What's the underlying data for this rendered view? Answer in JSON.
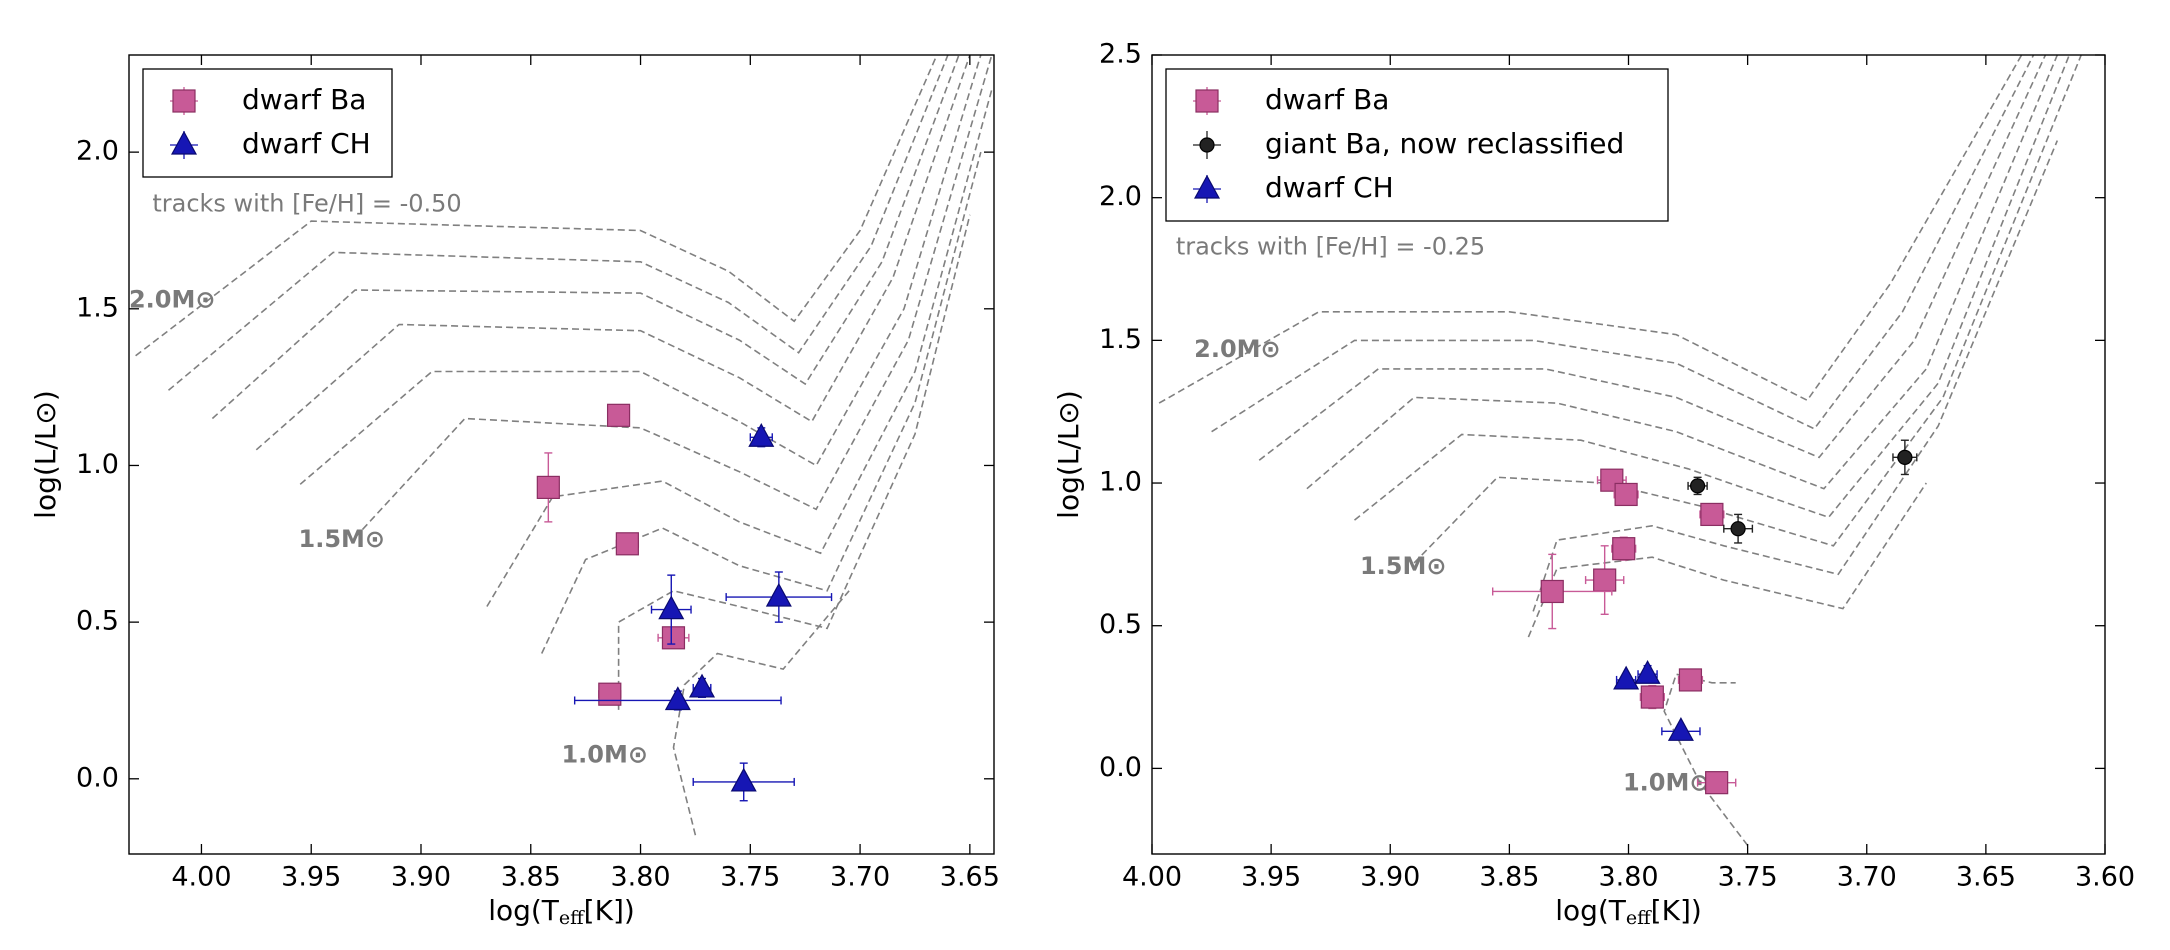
{
  "chart_data": [
    {
      "type": "scatter",
      "x_label": {
        "main": "log(T",
        "sub": "eff",
        "rest": "[K])"
      },
      "y_label": "log(L/L⊙)",
      "xlim": [
        4.033,
        3.639
      ],
      "ylim": [
        -0.24,
        2.31
      ],
      "xticks": [
        {
          "value": 4.0,
          "label": "4.00"
        },
        3.95,
        {
          "value": 3.9,
          "label": "3.90"
        },
        3.85,
        {
          "value": 3.8,
          "label": "3.80"
        },
        3.75,
        {
          "value": 3.7,
          "label": "3.70"
        },
        3.65
      ],
      "yticks": [
        {
          "value": 0,
          "label": "0.0"
        },
        0.5,
        {
          "value": 1,
          "label": "1.0"
        },
        1.5,
        {
          "value": 2,
          "label": "2.0"
        }
      ],
      "legend": "upper left",
      "annotations": [
        "tracks with [Fe/H] = -0.50",
        "2.0M⊙",
        "1.5M⊙",
        "1.0M⊙"
      ],
      "track_color": "#808080",
      "tracks": [
        {
          "x": [
            4.03,
            3.95,
            3.8,
            3.76,
            3.73,
            3.7,
            3.665
          ],
          "values": [
            1.35,
            1.78,
            1.75,
            1.62,
            1.46,
            1.75,
            2.31
          ]
        },
        {
          "x": [
            4.015,
            3.94,
            3.8,
            3.76,
            3.728,
            3.695,
            3.66
          ],
          "values": [
            1.24,
            1.68,
            1.65,
            1.52,
            1.36,
            1.7,
            2.31
          ]
        },
        {
          "x": [
            3.995,
            3.93,
            3.8,
            3.755,
            3.725,
            3.69,
            3.655
          ],
          "values": [
            1.15,
            1.56,
            1.55,
            1.4,
            1.26,
            1.65,
            2.31
          ]
        },
        {
          "x": [
            3.975,
            3.91,
            3.8,
            3.755,
            3.722,
            3.685,
            3.65
          ],
          "values": [
            1.05,
            1.45,
            1.43,
            1.28,
            1.14,
            1.6,
            2.31
          ]
        },
        {
          "x": [
            3.955,
            3.895,
            3.8,
            3.755,
            3.72,
            3.68,
            3.645
          ],
          "values": [
            0.94,
            1.3,
            1.3,
            1.14,
            1.0,
            1.5,
            2.31
          ]
        },
        {
          "x": [
            3.93,
            3.88,
            3.8,
            3.755,
            3.72,
            3.678,
            3.64
          ],
          "values": [
            0.77,
            1.15,
            1.12,
            0.98,
            0.86,
            1.4,
            2.31
          ]
        },
        {
          "x": [
            3.87,
            3.84,
            3.79,
            3.755,
            3.718,
            3.675,
            3.64
          ],
          "values": [
            0.55,
            0.9,
            0.95,
            0.82,
            0.72,
            1.3,
            2.2
          ]
        },
        {
          "x": [
            3.845,
            3.825,
            3.79,
            3.755,
            3.715,
            3.675,
            3.645
          ],
          "values": [
            0.4,
            0.7,
            0.8,
            0.68,
            0.6,
            1.2,
            2.0
          ]
        },
        {
          "x": [
            3.81,
            3.81,
            3.785,
            3.755,
            3.715,
            3.675,
            3.65
          ],
          "values": [
            0.22,
            0.5,
            0.6,
            0.55,
            0.48,
            1.1,
            1.8
          ]
        },
        {
          "x": [
            3.775,
            3.785,
            3.78,
            3.765,
            3.735,
            3.705
          ],
          "values": [
            -0.18,
            0.1,
            0.3,
            0.4,
            0.35,
            0.6
          ]
        }
      ],
      "series": [
        {
          "name": "dwarf Ba",
          "color": "#c85a97",
          "edge": "#8a2e62",
          "marker": "square",
          "x": [
            3.81,
            3.842,
            3.806,
            3.785,
            3.814
          ],
          "values": [
            1.16,
            0.93,
            0.75,
            0.45,
            0.27
          ],
          "xerr": [
            0.004,
            0.004,
            0.005,
            0.007,
            0.005
          ],
          "yerr": [
            0.03,
            0.11,
            0.03,
            0.03,
            0.02
          ]
        },
        {
          "name": "dwarf CH",
          "color": "#1616b4",
          "edge": "#0a0a70",
          "marker": "triangle",
          "x": [
            3.745,
            3.786,
            3.737,
            3.772,
            3.783,
            3.753
          ],
          "values": [
            1.09,
            0.54,
            0.58,
            0.29,
            0.25,
            -0.01
          ],
          "xerr": [
            0.005,
            0.009,
            0.024,
            0.004,
            0.047,
            0.023
          ],
          "yerr": [
            0.03,
            0.11,
            0.08,
            0.03,
            0.03,
            0.06
          ]
        }
      ]
    },
    {
      "type": "scatter",
      "x_label": {
        "main": "log(T",
        "sub": "eff",
        "rest": "[K])"
      },
      "y_label": "log(L/L⊙)",
      "xlim": [
        4.0,
        3.6
      ],
      "ylim": [
        -0.3,
        2.5
      ],
      "xticks": [
        {
          "value": 4.0,
          "label": "4.00"
        },
        3.95,
        {
          "value": 3.9,
          "label": "3.90"
        },
        3.85,
        {
          "value": 3.8,
          "label": "3.80"
        },
        3.75,
        {
          "value": 3.7,
          "label": "3.70"
        },
        3.65,
        {
          "value": 3.6,
          "label": "3.60"
        }
      ],
      "yticks": [
        {
          "value": 0,
          "label": "0.0"
        },
        0.5,
        {
          "value": 1,
          "label": "1.0"
        },
        1.5,
        {
          "value": 2,
          "label": "2.0"
        },
        2.5
      ],
      "legend": "upper left",
      "annotations": [
        "tracks with [Fe/H] = -0.25",
        "2.0M⊙",
        "1.5M⊙",
        "1.0M⊙"
      ],
      "track_color": "#808080",
      "tracks": [
        {
          "x": [
            3.997,
            3.93,
            3.85,
            3.78,
            3.725,
            3.69,
            3.635
          ],
          "values": [
            1.28,
            1.6,
            1.6,
            1.52,
            1.29,
            1.7,
            2.5
          ]
        },
        {
          "x": [
            3.975,
            3.915,
            3.84,
            3.78,
            3.722,
            3.685,
            3.63
          ],
          "values": [
            1.18,
            1.5,
            1.5,
            1.42,
            1.19,
            1.6,
            2.5
          ]
        },
        {
          "x": [
            3.955,
            3.905,
            3.835,
            3.78,
            3.72,
            3.68,
            3.625
          ],
          "values": [
            1.08,
            1.4,
            1.4,
            1.3,
            1.09,
            1.5,
            2.5
          ]
        },
        {
          "x": [
            3.935,
            3.89,
            3.83,
            3.78,
            3.718,
            3.675,
            3.62
          ],
          "values": [
            0.98,
            1.3,
            1.28,
            1.18,
            0.98,
            1.4,
            2.5
          ]
        },
        {
          "x": [
            3.915,
            3.87,
            3.82,
            3.775,
            3.716,
            3.67,
            3.615
          ],
          "values": [
            0.87,
            1.17,
            1.15,
            1.05,
            0.88,
            1.35,
            2.5
          ]
        },
        {
          "x": [
            3.89,
            3.855,
            3.81,
            3.77,
            3.714,
            3.668,
            3.61
          ],
          "values": [
            0.72,
            1.02,
            1.0,
            0.92,
            0.78,
            1.3,
            2.5
          ]
        },
        {
          "x": [
            3.84,
            3.83,
            3.79,
            3.76,
            3.712,
            3.67,
            3.62
          ],
          "values": [
            0.55,
            0.8,
            0.85,
            0.78,
            0.68,
            1.2,
            2.2
          ]
        },
        {
          "x": [
            3.842,
            3.83,
            3.79,
            3.76,
            3.71,
            3.675
          ],
          "values": [
            0.46,
            0.7,
            0.74,
            0.66,
            0.56,
            1.0
          ]
        },
        {
          "x": [
            3.75,
            3.77,
            3.785,
            3.78,
            3.765,
            3.755
          ],
          "values": [
            -0.27,
            -0.05,
            0.2,
            0.33,
            0.3,
            0.3
          ]
        }
      ],
      "series": [
        {
          "name": "dwarf Ba",
          "color": "#c85a97",
          "edge": "#8a2e62",
          "marker": "square",
          "x": [
            3.807,
            3.801,
            3.765,
            3.802,
            3.81,
            3.832,
            3.774,
            3.79,
            3.763
          ],
          "values": [
            1.01,
            0.96,
            0.89,
            0.77,
            0.66,
            0.62,
            0.31,
            0.25,
            -0.05
          ],
          "xerr": [
            0.006,
            0.005,
            0.005,
            0.005,
            0.008,
            0.025,
            0.005,
            0.005,
            0.008
          ],
          "yerr": [
            0.03,
            0.03,
            0.03,
            0.04,
            0.12,
            0.13,
            0.03,
            0.04,
            0.03
          ]
        },
        {
          "name": "giant Ba, now reclassified",
          "color": "#222222",
          "edge": "#000000",
          "marker": "circle",
          "x": [
            3.771,
            3.754,
            3.684
          ],
          "values": [
            0.99,
            0.84,
            1.09
          ],
          "xerr": [
            0.004,
            0.006,
            0.005
          ],
          "yerr": [
            0.03,
            0.05,
            0.06
          ]
        },
        {
          "name": "dwarf CH",
          "color": "#1616b4",
          "edge": "#0a0a70",
          "marker": "triangle",
          "x": [
            3.801,
            3.792,
            3.778
          ],
          "values": [
            0.31,
            0.33,
            0.13
          ],
          "xerr": [
            0.004,
            0.004,
            0.008
          ],
          "yerr": [
            0.02,
            0.03,
            0.02
          ]
        }
      ]
    }
  ]
}
